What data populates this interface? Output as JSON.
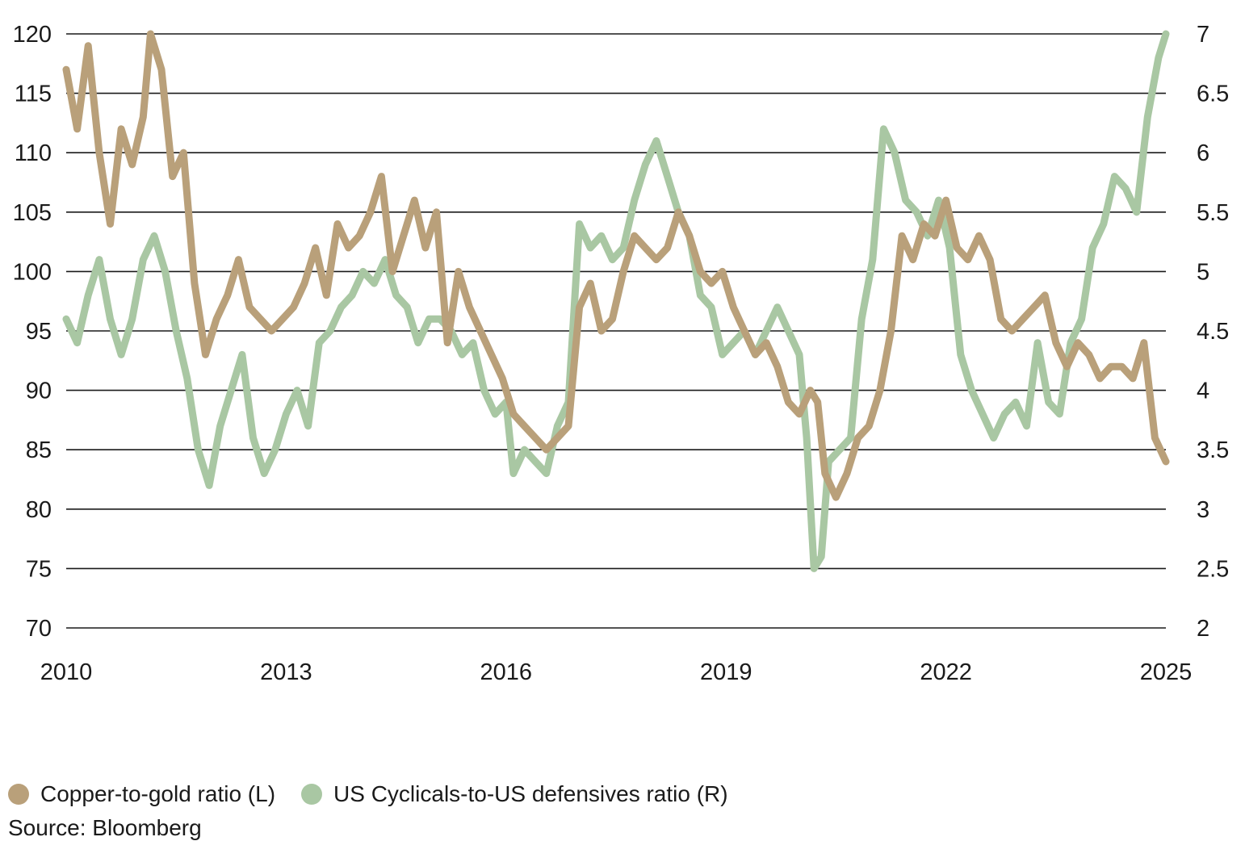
{
  "chart_data": {
    "type": "line",
    "title": "",
    "xlabel": "",
    "x_ticks": [
      "2010",
      "2013",
      "2016",
      "2019",
      "2022",
      "2025"
    ],
    "xlim": [
      2010,
      2025
    ],
    "y_left": {
      "lim": [
        70,
        120
      ],
      "ticks": [
        "70",
        "75",
        "80",
        "85",
        "90",
        "95",
        "100",
        "105",
        "110",
        "115",
        "120"
      ]
    },
    "y_right": {
      "lim": [
        2,
        7
      ],
      "ticks": [
        "2",
        "2.5",
        "3",
        "3.5",
        "4",
        "4.5",
        "5",
        "5.5",
        "6",
        "6.5",
        "7"
      ]
    },
    "grid": true,
    "legend_position": "bottom-left",
    "series": [
      {
        "name": "Copper-to-gold ratio (L)",
        "axis": "left",
        "color": "#b9a07a",
        "x": [
          2010.0,
          2010.15,
          2010.3,
          2010.45,
          2010.6,
          2010.75,
          2010.9,
          2011.05,
          2011.15,
          2011.3,
          2011.45,
          2011.6,
          2011.75,
          2011.9,
          2012.05,
          2012.2,
          2012.35,
          2012.5,
          2012.65,
          2012.8,
          2012.95,
          2013.1,
          2013.25,
          2013.4,
          2013.55,
          2013.7,
          2013.85,
          2014.0,
          2014.15,
          2014.3,
          2014.45,
          2014.6,
          2014.75,
          2014.9,
          2015.05,
          2015.2,
          2015.35,
          2015.5,
          2015.65,
          2015.8,
          2015.95,
          2016.1,
          2016.25,
          2016.4,
          2016.55,
          2016.7,
          2016.85,
          2017.0,
          2017.15,
          2017.3,
          2017.45,
          2017.6,
          2017.75,
          2017.9,
          2018.05,
          2018.2,
          2018.35,
          2018.5,
          2018.65,
          2018.8,
          2018.95,
          2019.1,
          2019.25,
          2019.4,
          2019.55,
          2019.7,
          2019.85,
          2020.0,
          2020.15,
          2020.25,
          2020.35,
          2020.5,
          2020.65,
          2020.8,
          2020.95,
          2021.1,
          2021.25,
          2021.4,
          2021.55,
          2021.7,
          2021.85,
          2022.0,
          2022.15,
          2022.3,
          2022.45,
          2022.6,
          2022.75,
          2022.9,
          2023.05,
          2023.2,
          2023.35,
          2023.5,
          2023.65,
          2023.8,
          2023.95,
          2024.1,
          2024.25,
          2024.4,
          2024.55,
          2024.7,
          2024.85,
          2025.0
        ],
        "y": [
          117,
          112,
          119,
          110,
          104,
          112,
          109,
          113,
          120,
          117,
          108,
          110,
          99,
          93,
          96,
          98,
          101,
          97,
          96,
          95,
          96,
          97,
          99,
          102,
          98,
          104,
          102,
          103,
          105,
          108,
          100,
          103,
          106,
          102,
          105,
          94,
          100,
          97,
          95,
          93,
          91,
          88,
          87,
          86,
          85,
          86,
          87,
          97,
          99,
          95,
          96,
          100,
          103,
          102,
          101,
          102,
          105,
          103,
          100,
          99,
          100,
          97,
          95,
          93,
          94,
          92,
          89,
          88,
          90,
          89,
          83,
          81,
          83,
          86,
          87,
          90,
          95,
          103,
          101,
          104,
          103,
          106,
          102,
          101,
          103,
          101,
          96,
          95,
          96,
          97,
          98,
          94,
          92,
          94,
          93,
          91,
          92,
          92,
          91,
          94,
          86,
          84
        ]
      },
      {
        "name": "US Cyclicals-to-US defensives ratio (R)",
        "axis": "right",
        "color": "#a9c7a3",
        "x": [
          2010.0,
          2010.15,
          2010.3,
          2010.45,
          2010.6,
          2010.75,
          2010.9,
          2011.05,
          2011.2,
          2011.35,
          2011.5,
          2011.65,
          2011.8,
          2011.95,
          2012.1,
          2012.25,
          2012.4,
          2012.55,
          2012.7,
          2012.85,
          2013.0,
          2013.15,
          2013.3,
          2013.45,
          2013.6,
          2013.75,
          2013.9,
          2014.05,
          2014.2,
          2014.35,
          2014.5,
          2014.65,
          2014.8,
          2014.95,
          2015.1,
          2015.25,
          2015.4,
          2015.55,
          2015.7,
          2015.85,
          2016.0,
          2016.1,
          2016.25,
          2016.4,
          2016.55,
          2016.7,
          2016.85,
          2017.0,
          2017.15,
          2017.3,
          2017.45,
          2017.6,
          2017.75,
          2017.9,
          2018.05,
          2018.2,
          2018.35,
          2018.5,
          2018.65,
          2018.8,
          2018.95,
          2019.1,
          2019.25,
          2019.4,
          2019.55,
          2019.7,
          2019.85,
          2020.0,
          2020.1,
          2020.2,
          2020.3,
          2020.4,
          2020.55,
          2020.7,
          2020.85,
          2021.0,
          2021.15,
          2021.3,
          2021.45,
          2021.6,
          2021.75,
          2021.9,
          2022.05,
          2022.2,
          2022.35,
          2022.5,
          2022.65,
          2022.8,
          2022.95,
          2023.1,
          2023.25,
          2023.4,
          2023.55,
          2023.7,
          2023.85,
          2024.0,
          2024.15,
          2024.3,
          2024.45,
          2024.6,
          2024.75,
          2024.9,
          2025.0
        ],
        "y": [
          4.6,
          4.4,
          4.8,
          5.1,
          4.6,
          4.3,
          4.6,
          5.1,
          5.3,
          5.0,
          4.5,
          4.1,
          3.5,
          3.2,
          3.7,
          4.0,
          4.3,
          3.6,
          3.3,
          3.5,
          3.8,
          4.0,
          3.7,
          4.4,
          4.5,
          4.7,
          4.8,
          5.0,
          4.9,
          5.1,
          4.8,
          4.7,
          4.4,
          4.6,
          4.6,
          4.5,
          4.3,
          4.4,
          4.0,
          3.8,
          3.9,
          3.3,
          3.5,
          3.4,
          3.3,
          3.7,
          3.9,
          5.4,
          5.2,
          5.3,
          5.1,
          5.2,
          5.6,
          5.9,
          6.1,
          5.8,
          5.5,
          5.3,
          4.8,
          4.7,
          4.3,
          4.4,
          4.5,
          4.3,
          4.5,
          4.7,
          4.5,
          4.3,
          3.6,
          2.5,
          2.6,
          3.4,
          3.5,
          3.6,
          4.6,
          5.1,
          6.2,
          6.0,
          5.6,
          5.5,
          5.3,
          5.6,
          5.2,
          4.3,
          4.0,
          3.8,
          3.6,
          3.8,
          3.9,
          3.7,
          4.4,
          3.9,
          3.8,
          4.4,
          4.6,
          5.2,
          5.4,
          5.8,
          5.7,
          5.5,
          6.3,
          6.8,
          7.0
        ]
      }
    ]
  },
  "legend": {
    "items": [
      {
        "label": "Copper-to-gold ratio (L)",
        "color": "#b9a07a"
      },
      {
        "label": "US Cyclicals-to-US defensives ratio (R)",
        "color": "#a9c7a3"
      }
    ]
  },
  "source_text": "Source: Bloomberg"
}
